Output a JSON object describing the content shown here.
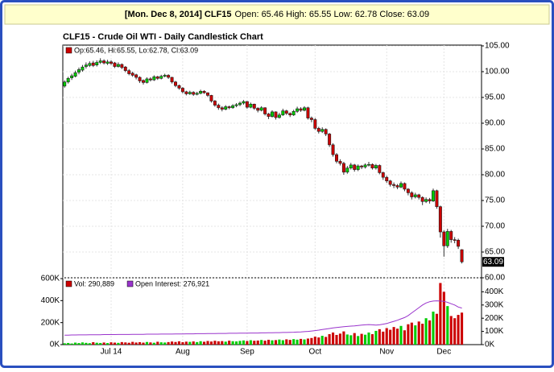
{
  "header": {
    "date_symbol": "[Mon. Dec 8, 2014] CLF15",
    "quote": "Open: 65.46 High: 65.55 Low: 62.78 Close: 63.09"
  },
  "chart_data": [
    {
      "type": "candlestick",
      "title": "CLF15 - Crude Oil WTI - Daily Candlestick Chart",
      "legend": "Op:65.46, Hi:65.55, Lo:62.78, Cl:63.09",
      "legend_color": "#cc0000",
      "last_label": "63.09",
      "up_color": "#00cc00",
      "down_color": "#cc0000",
      "grid": true,
      "ylim": [
        60,
        105
      ],
      "yticks": [
        {
          "value": 60,
          "label": "60.00"
        },
        {
          "value": 65,
          "label": "65.00"
        },
        {
          "value": 70,
          "label": "70.00"
        },
        {
          "value": 75,
          "label": "75.00"
        },
        {
          "value": 80,
          "label": "80.00"
        },
        {
          "value": 85,
          "label": "85.00"
        },
        {
          "value": 90,
          "label": "90.00"
        },
        {
          "value": 95,
          "label": "95.00"
        },
        {
          "value": 100,
          "label": "100.00"
        },
        {
          "value": 105,
          "label": "105.00"
        }
      ],
      "categories": [
        null,
        null,
        null,
        null,
        null,
        null,
        null,
        null,
        null,
        null,
        null,
        null,
        null,
        "Jul 14",
        null,
        null,
        null,
        null,
        null,
        null,
        null,
        null,
        null,
        null,
        null,
        null,
        null,
        null,
        null,
        null,
        null,
        null,
        null,
        "Aug",
        null,
        null,
        null,
        null,
        null,
        null,
        null,
        null,
        null,
        null,
        null,
        null,
        null,
        null,
        null,
        null,
        null,
        "Sep",
        null,
        null,
        null,
        null,
        null,
        null,
        null,
        null,
        null,
        null,
        null,
        null,
        null,
        null,
        null,
        null,
        null,
        null,
        "Oct",
        null,
        null,
        null,
        null,
        null,
        null,
        null,
        null,
        null,
        null,
        null,
        null,
        null,
        null,
        null,
        null,
        null,
        null,
        null,
        "Nov",
        null,
        null,
        null,
        null,
        null,
        null,
        null,
        null,
        null,
        null,
        null,
        null,
        null,
        null,
        null,
        "Dec",
        null,
        null,
        null,
        null,
        null
      ],
      "ohlc": [
        [
          97.2,
          98.3,
          96.9,
          98.0
        ],
        [
          98.0,
          99.0,
          97.7,
          98.7
        ],
        [
          98.8,
          99.6,
          98.4,
          99.2
        ],
        [
          99.1,
          100.2,
          98.9,
          99.8
        ],
        [
          99.9,
          100.8,
          99.5,
          100.4
        ],
        [
          100.3,
          101.3,
          100.0,
          100.9
        ],
        [
          101.0,
          101.8,
          100.6,
          101.3
        ],
        [
          101.2,
          102.0,
          100.9,
          101.6
        ],
        [
          101.7,
          102.1,
          100.9,
          101.2
        ],
        [
          101.3,
          102.2,
          101.0,
          101.8
        ],
        [
          101.8,
          102.6,
          101.5,
          102.1
        ],
        [
          102.1,
          102.4,
          101.4,
          101.7
        ],
        [
          101.6,
          102.3,
          101.3,
          101.9
        ],
        [
          101.9,
          102.2,
          101.3,
          101.6
        ],
        [
          101.7,
          101.9,
          100.7,
          101.0
        ],
        [
          101.0,
          101.8,
          100.8,
          101.4
        ],
        [
          101.4,
          101.6,
          100.5,
          100.8
        ],
        [
          100.9,
          101.1,
          99.9,
          100.2
        ],
        [
          100.2,
          100.5,
          99.3,
          99.6
        ],
        [
          99.7,
          100.0,
          99.0,
          99.3
        ],
        [
          99.4,
          99.6,
          98.5,
          98.9
        ],
        [
          98.9,
          99.1,
          97.8,
          98.2
        ],
        [
          98.3,
          98.5,
          97.5,
          97.9
        ],
        [
          97.9,
          98.9,
          97.7,
          98.6
        ],
        [
          98.6,
          98.9,
          98.1,
          98.4
        ],
        [
          98.4,
          99.3,
          98.2,
          99.0
        ],
        [
          99.0,
          99.2,
          98.4,
          98.7
        ],
        [
          98.7,
          99.4,
          98.5,
          99.1
        ],
        [
          99.1,
          99.6,
          98.9,
          99.3
        ],
        [
          99.3,
          99.5,
          98.6,
          98.9
        ],
        [
          98.9,
          99.0,
          97.7,
          98.0
        ],
        [
          98.0,
          98.2,
          97.0,
          97.3
        ],
        [
          97.3,
          97.5,
          96.5,
          96.8
        ],
        [
          96.8,
          97.0,
          95.8,
          96.1
        ],
        [
          96.1,
          96.3,
          95.4,
          95.7
        ],
        [
          95.7,
          96.3,
          95.5,
          96.0
        ],
        [
          96.0,
          96.2,
          95.3,
          95.6
        ],
        [
          95.6,
          96.1,
          95.4,
          95.8
        ],
        [
          95.8,
          96.5,
          95.6,
          96.2
        ],
        [
          96.2,
          96.4,
          95.7,
          95.9
        ],
        [
          95.9,
          96.0,
          95.1,
          95.4
        ],
        [
          95.4,
          95.5,
          94.0,
          94.3
        ],
        [
          94.3,
          94.5,
          93.2,
          93.5
        ],
        [
          93.5,
          93.8,
          92.6,
          93.0
        ],
        [
          93.0,
          93.3,
          92.3,
          92.7
        ],
        [
          92.7,
          93.5,
          92.5,
          93.2
        ],
        [
          93.2,
          93.4,
          92.7,
          93.0
        ],
        [
          93.0,
          93.7,
          92.8,
          93.4
        ],
        [
          93.4,
          93.9,
          93.1,
          93.6
        ],
        [
          93.6,
          94.2,
          93.3,
          93.9
        ],
        [
          93.9,
          94.5,
          93.6,
          94.2
        ],
        [
          94.2,
          94.3,
          92.8,
          93.1
        ],
        [
          93.1,
          94.0,
          92.9,
          93.7
        ],
        [
          93.7,
          93.8,
          92.6,
          92.9
        ],
        [
          92.9,
          93.1,
          92.1,
          92.5
        ],
        [
          92.5,
          93.3,
          92.3,
          93.0
        ],
        [
          93.0,
          93.1,
          91.5,
          91.8
        ],
        [
          91.8,
          92.0,
          90.8,
          91.3
        ],
        [
          91.3,
          92.5,
          91.1,
          92.2
        ],
        [
          92.2,
          92.3,
          90.7,
          91.1
        ],
        [
          91.1,
          92.0,
          90.9,
          91.6
        ],
        [
          91.6,
          92.8,
          91.4,
          92.4
        ],
        [
          92.4,
          92.6,
          91.6,
          91.9
        ],
        [
          91.9,
          92.1,
          91.2,
          91.6
        ],
        [
          91.6,
          92.6,
          91.4,
          92.3
        ],
        [
          92.3,
          93.2,
          92.0,
          92.8
        ],
        [
          92.8,
          93.1,
          92.2,
          92.5
        ],
        [
          92.5,
          93.3,
          92.3,
          93.0
        ],
        [
          93.0,
          93.2,
          90.7,
          91.0
        ],
        [
          91.0,
          91.3,
          90.2,
          90.7
        ],
        [
          90.7,
          91.0,
          88.7,
          89.0
        ],
        [
          89.0,
          89.3,
          88.0,
          88.4
        ],
        [
          88.4,
          89.2,
          88.1,
          88.8
        ],
        [
          88.8,
          89.0,
          87.5,
          87.9
        ],
        [
          87.9,
          88.1,
          85.4,
          85.8
        ],
        [
          85.8,
          86.1,
          83.5,
          83.9
        ],
        [
          83.9,
          84.2,
          82.2,
          82.6
        ],
        [
          82.6,
          83.0,
          81.8,
          82.2
        ],
        [
          82.2,
          82.5,
          80.0,
          80.5
        ],
        [
          80.5,
          81.7,
          80.2,
          81.3
        ],
        [
          81.3,
          82.3,
          81.0,
          81.9
        ],
        [
          81.9,
          82.1,
          80.6,
          81.0
        ],
        [
          81.0,
          82.0,
          80.7,
          81.7
        ],
        [
          81.7,
          81.9,
          81.1,
          81.5
        ],
        [
          81.5,
          82.2,
          81.2,
          81.9
        ],
        [
          81.9,
          82.5,
          81.6,
          82.0
        ],
        [
          82.0,
          82.2,
          81.0,
          81.3
        ],
        [
          81.3,
          82.1,
          81.0,
          81.8
        ],
        [
          81.8,
          82.0,
          80.1,
          80.4
        ],
        [
          80.4,
          80.6,
          79.0,
          79.5
        ],
        [
          79.5,
          79.8,
          78.4,
          78.8
        ],
        [
          78.8,
          79.0,
          77.7,
          78.1
        ],
        [
          78.1,
          78.5,
          77.4,
          77.9
        ],
        [
          77.9,
          78.2,
          77.2,
          77.6
        ],
        [
          77.6,
          78.7,
          77.4,
          78.3
        ],
        [
          78.3,
          78.5,
          76.8,
          77.2
        ],
        [
          77.2,
          77.4,
          76.0,
          76.5
        ],
        [
          76.5,
          76.8,
          75.2,
          75.7
        ],
        [
          75.7,
          76.5,
          75.4,
          76.1
        ],
        [
          76.1,
          76.3,
          75.2,
          75.6
        ],
        [
          75.6,
          75.8,
          74.1,
          74.8
        ],
        [
          74.8,
          75.6,
          74.5,
          75.2
        ],
        [
          75.2,
          75.5,
          74.4,
          74.9
        ],
        [
          74.9,
          77.3,
          74.7,
          76.9
        ],
        [
          76.9,
          77.1,
          73.4,
          73.8
        ],
        [
          73.8,
          74.0,
          67.8,
          68.9
        ],
        [
          68.9,
          69.2,
          64.1,
          66.2
        ],
        [
          66.2,
          69.5,
          65.8,
          69.0
        ],
        [
          69.0,
          69.3,
          66.8,
          67.4
        ],
        [
          67.4,
          67.9,
          66.7,
          67.3
        ],
        [
          67.3,
          67.6,
          65.6,
          66.1
        ],
        [
          65.46,
          65.55,
          62.78,
          63.09
        ]
      ]
    },
    {
      "type": "bar",
      "ylim": [
        0,
        600000
      ],
      "yticks": [
        {
          "value": 0,
          "label": "0K"
        },
        {
          "value": 200000,
          "label": "200K"
        },
        {
          "value": 400000,
          "label": "400K"
        },
        {
          "value": 600000,
          "label": "600K"
        }
      ],
      "y2lim": [
        0,
        500000
      ],
      "y2ticks": [
        {
          "value": 0,
          "label": "0K"
        },
        {
          "value": 100000,
          "label": "100K"
        },
        {
          "value": 200000,
          "label": "200K"
        },
        {
          "value": 300000,
          "label": "300K"
        },
        {
          "value": 400000,
          "label": "400K"
        }
      ],
      "series": [
        {
          "name": "Vol: 290,889",
          "color": "#cc0000",
          "values": [
            12000,
            15000,
            10000,
            18000,
            14000,
            20000,
            16000,
            13000,
            22000,
            17000,
            15000,
            19000,
            14000,
            21000,
            18000,
            16000,
            23000,
            20000,
            17000,
            25000,
            19000,
            22000,
            18000,
            24000,
            20000,
            17000,
            26000,
            21000,
            19000,
            23000,
            28000,
            24000,
            30000,
            22000,
            27000,
            25000,
            29000,
            23000,
            31000,
            26000,
            33000,
            28000,
            35000,
            30000,
            32000,
            27000,
            36000,
            31000,
            29000,
            34000,
            38000,
            33000,
            40000,
            35000,
            37000,
            42000,
            36000,
            44000,
            39000,
            41000,
            46000,
            40000,
            48000,
            43000,
            50000,
            45000,
            52000,
            47000,
            55000,
            60000,
            72000,
            65000,
            80000,
            70000,
            95000,
            110000,
            88000,
            100000,
            120000,
            92000,
            85000,
            105000,
            78000,
            98000,
            90000,
            110000,
            95000,
            125000,
            140000,
            118000,
            150000,
            135000,
            160000,
            145000,
            170000,
            130000,
            185000,
            200000,
            175000,
            210000,
            190000,
            240000,
            220000,
            300000,
            280000,
            560000,
            480000,
            350000,
            260000,
            240000,
            270000,
            290889
          ]
        },
        {
          "name": "Open Interest: 276,921",
          "color": "#9933cc",
          "axis": "y2",
          "values": [
            72000,
            72000,
            73000,
            73000,
            74000,
            74000,
            74000,
            75000,
            75000,
            75000,
            75000,
            76000,
            76000,
            76000,
            76000,
            77000,
            77000,
            77000,
            77000,
            78000,
            78000,
            78000,
            78000,
            79000,
            79000,
            79000,
            79000,
            80000,
            80000,
            80000,
            80000,
            81000,
            81000,
            81000,
            82000,
            82000,
            82000,
            83000,
            83000,
            83000,
            84000,
            84000,
            84000,
            85000,
            85000,
            85000,
            86000,
            86000,
            86000,
            87000,
            87000,
            87000,
            88000,
            88000,
            88000,
            89000,
            89000,
            90000,
            90000,
            91000,
            91000,
            92000,
            92000,
            93000,
            94000,
            95000,
            96000,
            98000,
            100000,
            103000,
            106000,
            110000,
            114000,
            118000,
            122000,
            126000,
            130000,
            133000,
            136000,
            138000,
            140000,
            142000,
            145000,
            148000,
            150000,
            152000,
            150000,
            148000,
            150000,
            155000,
            160000,
            168000,
            176000,
            185000,
            195000,
            205000,
            220000,
            240000,
            260000,
            280000,
            300000,
            315000,
            325000,
            330000,
            332000,
            330000,
            328000,
            320000,
            310000,
            300000,
            285000,
            276921
          ]
        }
      ]
    }
  ]
}
